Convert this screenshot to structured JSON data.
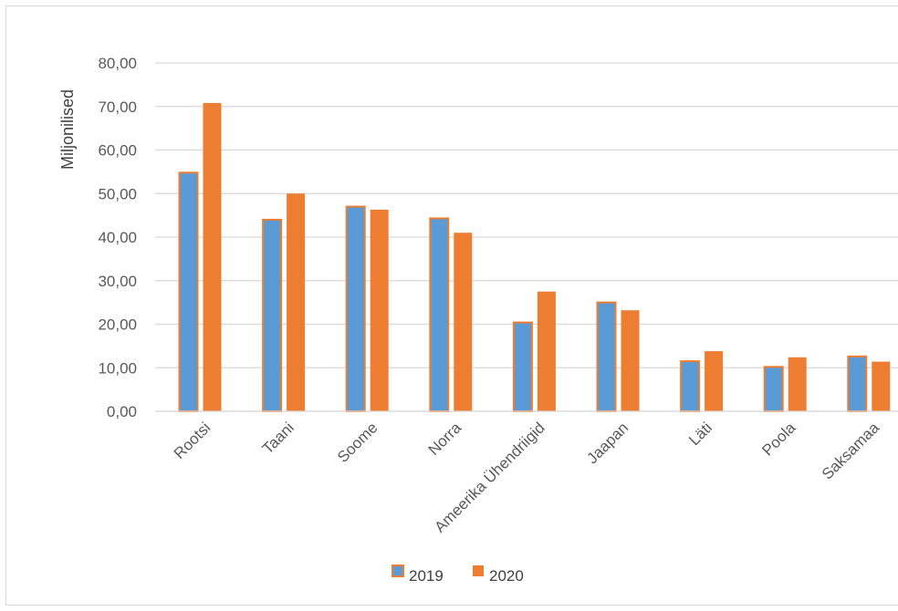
{
  "chart_data": {
    "type": "bar",
    "title": "",
    "xlabel": "",
    "ylabel": "Miljonilised",
    "ylim": [
      0,
      80
    ],
    "yticks": [
      "0,00",
      "10,00",
      "20,00",
      "30,00",
      "40,00",
      "50,00",
      "60,00",
      "70,00",
      "80,00"
    ],
    "categories": [
      "Rootsi",
      "Taani",
      "Soome",
      "Norra",
      "Ameerika Ühendriigid",
      "Jaapan",
      "Läti",
      "Poola",
      "Saksamaa"
    ],
    "series": [
      {
        "name": "2019",
        "color": "#5B9BD5",
        "border": "#ED7D31",
        "values": [
          54.8,
          44.0,
          47.0,
          44.3,
          20.4,
          25.0,
          11.5,
          10.2,
          12.6
        ]
      },
      {
        "name": "2020",
        "color": "#ED7D31",
        "values": [
          70.8,
          50.0,
          46.3,
          41.0,
          27.5,
          23.2,
          13.8,
          12.4,
          11.4
        ]
      }
    ],
    "grid": true,
    "legend": "bottom"
  }
}
